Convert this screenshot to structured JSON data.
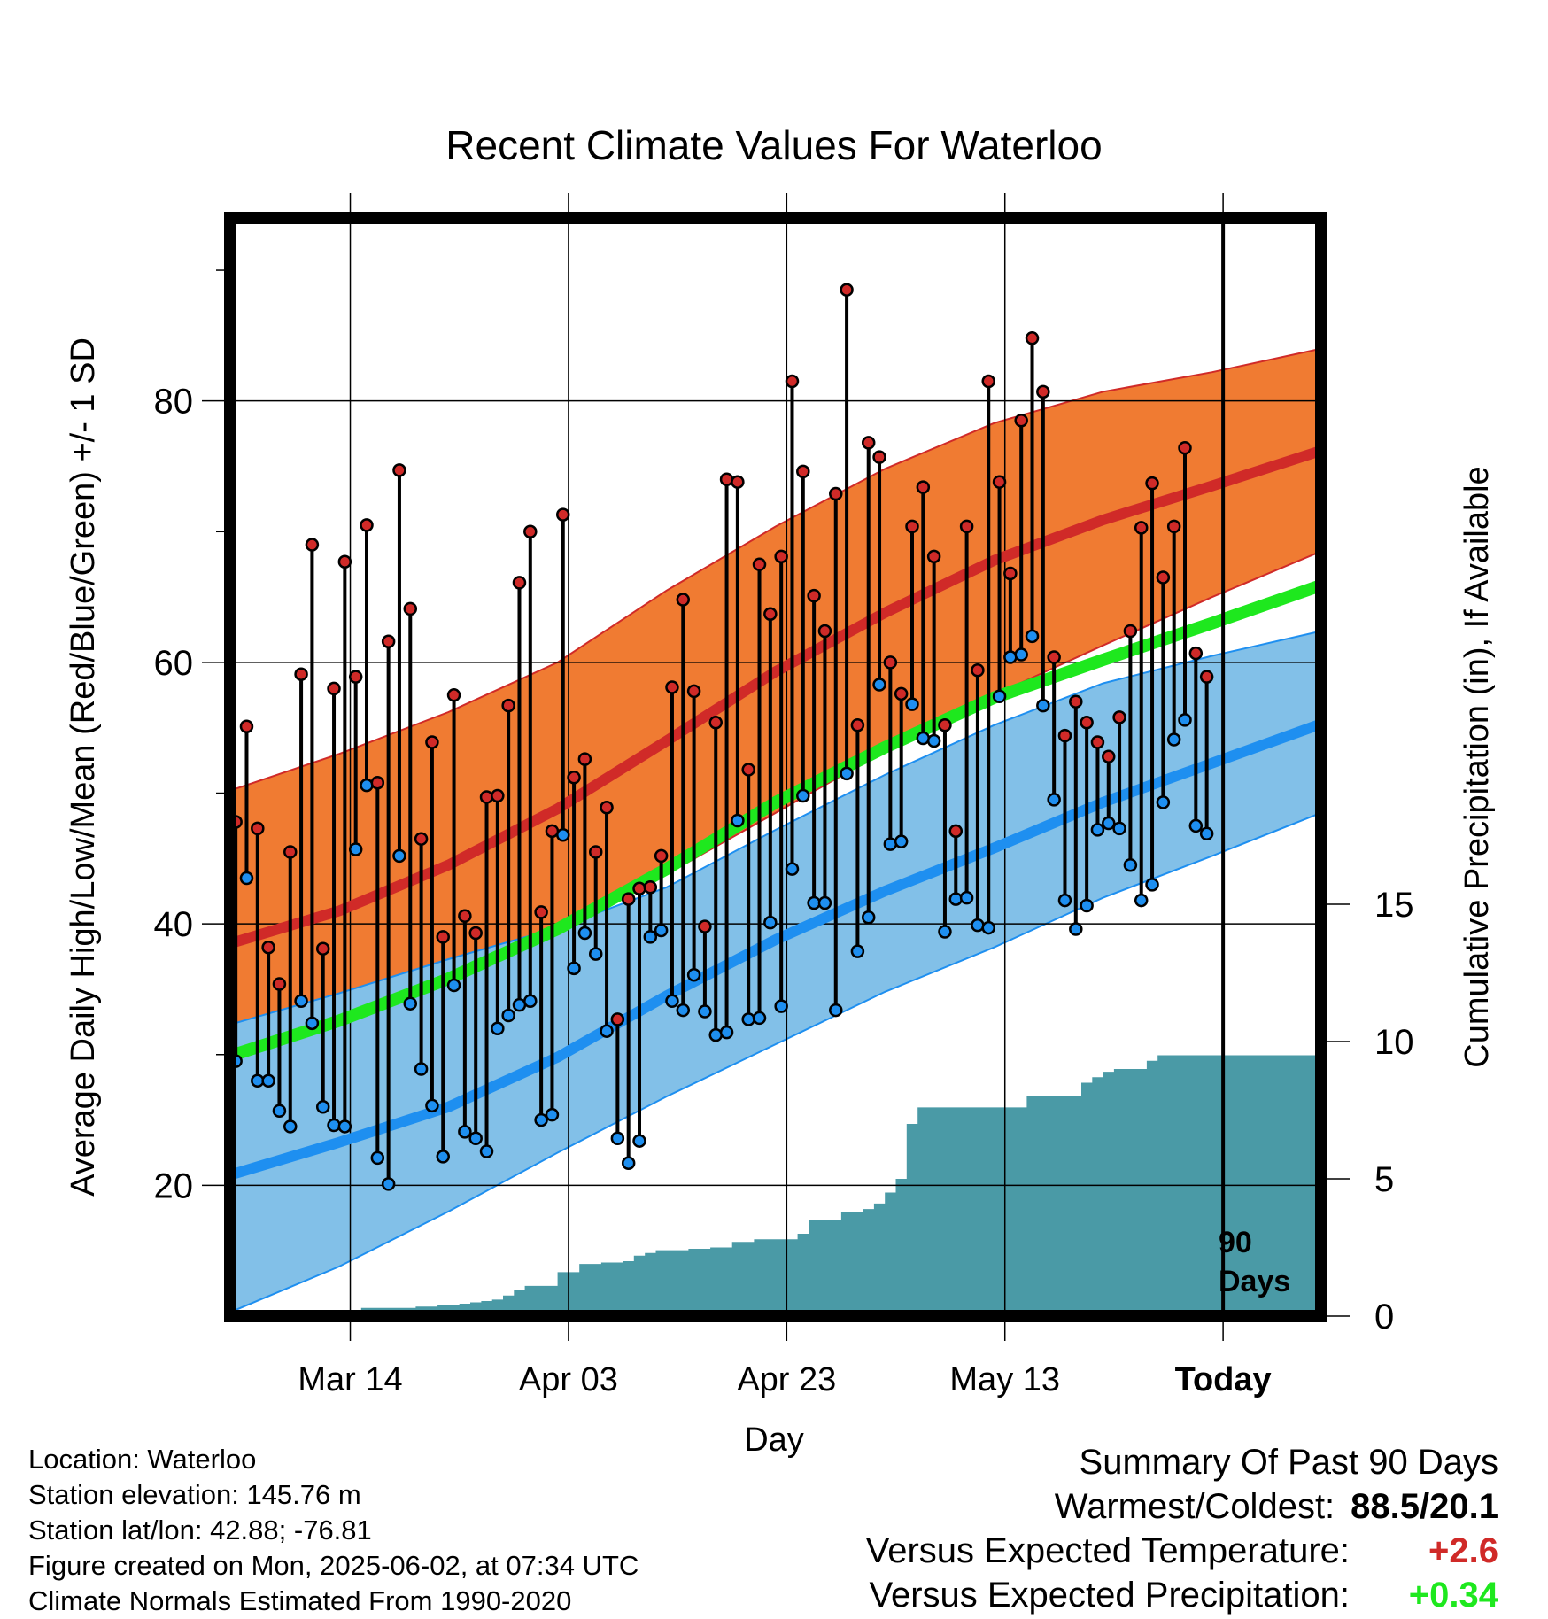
{
  "chart_data": {
    "type": "line",
    "title": "Recent Climate Values For Waterloo",
    "xlabel": "Day",
    "ylabel": "Average Daily High/Low/Mean (Red/Blue/Green) +/- 1 SD",
    "ylabel_right": "Cumulative Precipitation (in), If Available",
    "x_tick_labels": [
      "Mar 14",
      "Apr 03",
      "Apr 23",
      "May 13",
      "Today"
    ],
    "x_tick_days": [
      "2025-03-14",
      "2025-04-03",
      "2025-04-23",
      "2025-05-13",
      "2025-06-02"
    ],
    "x_range": [
      "2025-03-03",
      "2025-06-11"
    ],
    "ylim": [
      10,
      94
    ],
    "y_ticks": [
      20,
      40,
      60,
      80
    ],
    "y_minor_ticks": [
      30,
      50,
      70,
      90
    ],
    "y2lim": [
      0,
      40
    ],
    "y2_ticks": [
      0,
      5,
      10,
      15
    ],
    "grid": true,
    "today_marker": {
      "date": "2025-06-02",
      "label_line1": "90",
      "label_line2": "Days"
    },
    "normals": {
      "days": [
        "2025-03-03",
        "2025-03-13",
        "2025-03-23",
        "2025-04-02",
        "2025-04-12",
        "2025-04-22",
        "2025-05-02",
        "2025-05-12",
        "2025-05-22",
        "2025-06-01",
        "2025-06-11"
      ],
      "high_mean": [
        38.5,
        41.0,
        44.5,
        48.8,
        54.0,
        59.3,
        63.8,
        67.8,
        70.9,
        73.5,
        76.2
      ],
      "high_upper": [
        50.2,
        53.0,
        56.2,
        60.0,
        65.5,
        70.4,
        74.8,
        78.3,
        80.7,
        82.2,
        84.0
      ],
      "high_lower": [
        28.3,
        31.8,
        35.4,
        39.5,
        43.8,
        48.5,
        53.2,
        57.5,
        61.3,
        65.0,
        68.5
      ],
      "low_mean": [
        20.8,
        23.3,
        26.0,
        29.8,
        34.5,
        38.8,
        42.5,
        45.8,
        49.3,
        52.3,
        55.3
      ],
      "low_upper": [
        32.3,
        34.7,
        37.3,
        39.7,
        42.8,
        47.2,
        51.4,
        55.2,
        58.4,
        60.5,
        62.4
      ],
      "low_lower": [
        10.3,
        13.8,
        18.0,
        22.5,
        26.8,
        30.8,
        34.8,
        38.2,
        42.0,
        45.2,
        48.5
      ],
      "mean": [
        29.9,
        32.6,
        35.8,
        39.6,
        44.2,
        49.3,
        53.5,
        57.3,
        60.2,
        63.0,
        65.9
      ],
      "colors": {
        "high_band": "#f07b32",
        "high_line": "#d02a28",
        "low_band": "#82c0e8",
        "low_line": "#1e8ff0",
        "mean_line": "#1ee81e"
      }
    },
    "daily": {
      "start_date": "2025-03-03",
      "highs": [
        47.8,
        55.1,
        47.3,
        38.2,
        35.4,
        45.5,
        59.1,
        69.0,
        38.1,
        58.0,
        67.7,
        58.9,
        70.5,
        50.8,
        61.6,
        74.7,
        64.1,
        46.5,
        53.9,
        39.0,
        57.5,
        40.6,
        39.3,
        49.7,
        49.8,
        56.7,
        66.1,
        70.0,
        40.9,
        47.1,
        71.3,
        51.2,
        52.6,
        45.5,
        48.9,
        32.7,
        41.9,
        42.7,
        42.8,
        45.2,
        58.1,
        64.8,
        57.8,
        39.8,
        55.4,
        74.0,
        73.8,
        51.8,
        67.5,
        63.7,
        68.1,
        81.5,
        74.6,
        65.1,
        62.4,
        72.9,
        88.5,
        55.2,
        76.8,
        75.7,
        60.0,
        57.6,
        70.4,
        73.4,
        68.1,
        55.2,
        47.1,
        70.4,
        59.4,
        81.5,
        73.8,
        66.8,
        78.5,
        84.8,
        80.7,
        60.4,
        54.4,
        57.0,
        55.4,
        53.9,
        52.8,
        55.8,
        62.4,
        70.3,
        73.7,
        66.5,
        70.4,
        76.4,
        60.7,
        58.9
      ],
      "lows": [
        29.5,
        43.5,
        28.0,
        28.0,
        25.7,
        24.5,
        34.1,
        32.4,
        26.0,
        24.6,
        24.5,
        45.7,
        50.6,
        22.1,
        20.1,
        45.2,
        33.9,
        28.9,
        26.1,
        22.2,
        35.3,
        24.1,
        23.6,
        22.6,
        32.0,
        33.0,
        33.8,
        34.1,
        25.0,
        25.4,
        46.8,
        36.6,
        39.3,
        37.7,
        31.8,
        23.6,
        21.7,
        23.4,
        39.0,
        39.5,
        34.1,
        33.4,
        36.1,
        33.3,
        31.5,
        31.7,
        47.9,
        32.7,
        32.8,
        40.1,
        33.7,
        44.2,
        49.8,
        41.6,
        41.6,
        33.4,
        51.5,
        37.9,
        40.5,
        58.3,
        46.1,
        46.3,
        56.8,
        54.2,
        54.0,
        39.4,
        41.9,
        42.0,
        39.9,
        39.7,
        57.4,
        60.4,
        60.6,
        62.0,
        56.7,
        49.5,
        41.8,
        39.6,
        41.4,
        47.2,
        47.7,
        47.3,
        44.5,
        41.8,
        43.0,
        49.3,
        54.1,
        55.6,
        47.5,
        46.9
      ]
    },
    "precip_cumulative": {
      "start_date": "2025-03-03",
      "values": [
        0.0,
        0.05,
        0.1,
        0.15,
        0.2,
        0.2,
        0.2,
        0.2,
        0.2,
        0.2,
        0.2,
        0.2,
        0.3,
        0.3,
        0.3,
        0.3,
        0.3,
        0.35,
        0.35,
        0.4,
        0.4,
        0.45,
        0.5,
        0.55,
        0.6,
        0.75,
        0.95,
        1.1,
        1.1,
        1.1,
        1.6,
        1.6,
        1.9,
        1.9,
        1.95,
        1.95,
        2.0,
        2.2,
        2.3,
        2.4,
        2.4,
        2.4,
        2.45,
        2.45,
        2.5,
        2.5,
        2.7,
        2.7,
        2.8,
        2.8,
        2.8,
        2.8,
        3.0,
        3.5,
        3.5,
        3.5,
        3.8,
        3.8,
        3.9,
        4.1,
        4.5,
        5.0,
        7.0,
        7.6,
        7.6,
        7.6,
        7.6,
        7.6,
        7.6,
        7.6,
        7.6,
        7.6,
        7.6,
        8.0,
        8.0,
        8.0,
        8.0,
        8.0,
        8.5,
        8.7,
        8.9,
        9.0,
        9.0,
        9.0,
        9.3,
        9.5,
        9.5,
        9.5,
        9.5,
        9.5,
        9.5,
        9.5
      ],
      "fill_color": "#4a9aa6"
    }
  },
  "info": {
    "location": "Location: Waterloo",
    "elevation": "Station elevation: 145.76 m",
    "latlon": "Station lat/lon: 42.88; -76.81",
    "created": "Figure created on Mon, 2025-06-02, at 07:34 UTC",
    "normals": "Climate Normals Estimated From 1990-2020"
  },
  "summary": {
    "title": "Summary Of Past 90 Days",
    "warmest_coldest_label": "Warmest/Coldest:",
    "warmest_coldest_value": "88.5/20.1",
    "temp_label": "Versus Expected Temperature:",
    "temp_value": "+2.6",
    "temp_color": "#d02a28",
    "precip_label": "Versus Expected Precipitation:",
    "precip_value": "+0.34",
    "precip_color": "#1ee81e"
  }
}
